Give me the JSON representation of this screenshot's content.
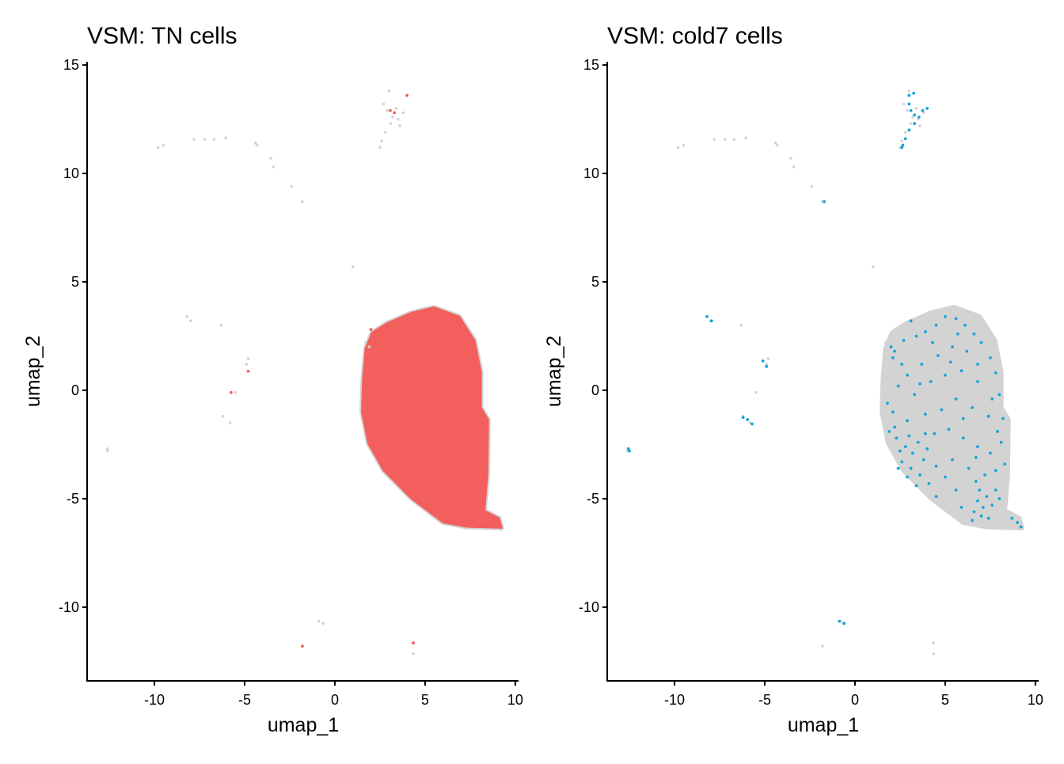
{
  "chart_data": [
    {
      "type": "scatter",
      "title": "VSM: TN cells",
      "xlabel": "umap_1",
      "ylabel": "umap_2",
      "xlim": [
        -13.73,
        10.18
      ],
      "ylim": [
        -13.4,
        15.15
      ],
      "xticks": [
        -10,
        -5,
        0,
        5,
        10
      ],
      "yticks": [
        -10,
        -5,
        0,
        5,
        10,
        15
      ],
      "grid": false,
      "highlight_color": "#F25F5C",
      "background_color": "#D3D3D3",
      "highlight_fills_main_cluster": true
    },
    {
      "type": "scatter",
      "title": "VSM: cold7 cells",
      "xlabel": "umap_1",
      "ylabel": "umap_2",
      "xlim": [
        -13.73,
        10.18
      ],
      "ylim": [
        -13.4,
        15.15
      ],
      "xticks": [
        -10,
        -5,
        0,
        5,
        10
      ],
      "yticks": [
        -10,
        -5,
        0,
        5,
        10,
        15
      ],
      "grid": false,
      "highlight_color": "#17A5DC",
      "background_color": "#D3D3D3",
      "highlight_fills_main_cluster": false
    }
  ],
  "shared": {
    "main_cluster_outline": [
      [
        2.06,
        2.66
      ],
      [
        2.9,
        3.1
      ],
      [
        4.25,
        3.58
      ],
      [
        5.5,
        3.83
      ],
      [
        6.9,
        3.4
      ],
      [
        7.75,
        2.3
      ],
      [
        8.1,
        0.84
      ],
      [
        8.1,
        -0.8
      ],
      [
        8.5,
        -1.35
      ],
      [
        8.46,
        -3.9
      ],
      [
        8.3,
        -5.55
      ],
      [
        9.1,
        -5.9
      ],
      [
        9.25,
        -6.35
      ],
      [
        7.3,
        -6.3
      ],
      [
        6.0,
        -6.1
      ],
      [
        4.25,
        -5.0
      ],
      [
        2.7,
        -3.7
      ],
      [
        1.85,
        -2.45
      ],
      [
        1.5,
        -1.0
      ],
      [
        1.55,
        0.47
      ],
      [
        1.7,
        1.93
      ]
    ],
    "background_points": [
      [
        3.0,
        13.8
      ],
      [
        2.7,
        13.2
      ],
      [
        2.9,
        12.9
      ],
      [
        3.2,
        12.6
      ],
      [
        3.5,
        12.5
      ],
      [
        3.8,
        12.8
      ],
      [
        3.4,
        13.0
      ],
      [
        3.1,
        12.3
      ],
      [
        2.8,
        11.9
      ],
      [
        2.6,
        11.5
      ],
      [
        2.5,
        11.2
      ],
      [
        3.6,
        12.2
      ],
      [
        -9.8,
        11.2
      ],
      [
        -9.5,
        11.3
      ],
      [
        -7.8,
        11.57
      ],
      [
        -7.2,
        11.57
      ],
      [
        -6.7,
        11.57
      ],
      [
        -6.05,
        11.64
      ],
      [
        -4.4,
        11.4
      ],
      [
        -4.3,
        11.3
      ],
      [
        -3.55,
        10.7
      ],
      [
        -3.4,
        10.3
      ],
      [
        -2.4,
        9.4
      ],
      [
        -1.8,
        8.7
      ],
      [
        1.0,
        5.7
      ],
      [
        -8.2,
        3.4
      ],
      [
        -8.0,
        3.2
      ],
      [
        -6.3,
        3.0
      ],
      [
        -4.8,
        1.46
      ],
      [
        -4.9,
        1.2
      ],
      [
        -5.5,
        -0.1
      ],
      [
        -6.2,
        -1.2
      ],
      [
        -5.8,
        -1.5
      ],
      [
        -12.6,
        -2.7
      ],
      [
        -12.6,
        -2.8
      ],
      [
        -0.9,
        -10.65
      ],
      [
        -0.66,
        -10.75
      ],
      [
        -1.8,
        -11.8
      ],
      [
        4.35,
        -11.65
      ],
      [
        4.35,
        -12.15
      ],
      [
        1.7,
        2.2
      ],
      [
        1.9,
        2.0
      ]
    ],
    "tn_points": [
      [
        4.0,
        13.6
      ],
      [
        3.07,
        12.9
      ],
      [
        3.3,
        12.8
      ],
      [
        -4.8,
        0.88
      ],
      [
        -5.75,
        -0.1
      ],
      [
        -1.8,
        -11.8
      ],
      [
        4.35,
        -11.65
      ],
      [
        2.0,
        2.8
      ]
    ],
    "cold7_points": [
      [
        3.0,
        13.6
      ],
      [
        3.25,
        13.7
      ],
      [
        3.0,
        13.2
      ],
      [
        3.1,
        12.9
      ],
      [
        3.3,
        12.7
      ],
      [
        3.55,
        12.6
      ],
      [
        3.75,
        12.9
      ],
      [
        4.0,
        13.0
      ],
      [
        3.3,
        12.3
      ],
      [
        3.0,
        12.0
      ],
      [
        2.8,
        11.6
      ],
      [
        2.65,
        11.3
      ],
      [
        2.6,
        11.2
      ],
      [
        -1.7,
        8.7
      ],
      [
        -8.2,
        3.4
      ],
      [
        -7.95,
        3.2
      ],
      [
        -5.1,
        1.35
      ],
      [
        -4.9,
        1.1
      ],
      [
        -6.2,
        -1.25
      ],
      [
        -5.95,
        -1.35
      ],
      [
        -5.7,
        -1.55
      ],
      [
        -12.55,
        -2.7
      ],
      [
        -12.5,
        -2.8
      ],
      [
        -0.85,
        -10.65
      ],
      [
        -0.6,
        -10.75
      ],
      [
        2.0,
        2.0
      ],
      [
        2.2,
        1.8
      ],
      [
        2.1,
        1.5
      ],
      [
        2.6,
        1.2
      ],
      [
        3.1,
        3.2
      ],
      [
        3.4,
        2.5
      ],
      [
        3.9,
        2.7
      ],
      [
        4.5,
        3.0
      ],
      [
        5.0,
        3.4
      ],
      [
        5.6,
        3.3
      ],
      [
        6.1,
        3.0
      ],
      [
        6.6,
        2.6
      ],
      [
        7.0,
        2.2
      ],
      [
        7.5,
        1.5
      ],
      [
        7.8,
        0.8
      ],
      [
        6.2,
        1.8
      ],
      [
        5.4,
        2.0
      ],
      [
        4.6,
        1.6
      ],
      [
        3.7,
        1.2
      ],
      [
        2.9,
        0.7
      ],
      [
        2.4,
        0.2
      ],
      [
        3.3,
        -0.2
      ],
      [
        4.2,
        0.4
      ],
      [
        5.0,
        0.7
      ],
      [
        5.9,
        0.9
      ],
      [
        6.8,
        0.4
      ],
      [
        7.6,
        -0.4
      ],
      [
        8.2,
        -1.3
      ],
      [
        7.4,
        -1.2
      ],
      [
        6.5,
        -0.8
      ],
      [
        5.6,
        -0.4
      ],
      [
        4.8,
        -0.9
      ],
      [
        3.9,
        -1.1
      ],
      [
        2.9,
        -1.4
      ],
      [
        2.1,
        -1.0
      ],
      [
        1.8,
        -0.6
      ],
      [
        2.3,
        -2.2
      ],
      [
        2.8,
        -2.6
      ],
      [
        3.2,
        -2.9
      ],
      [
        3.5,
        -2.4
      ],
      [
        3.8,
        -3.2
      ],
      [
        2.6,
        -3.3
      ],
      [
        3.1,
        -3.6
      ],
      [
        3.6,
        -3.9
      ],
      [
        4.1,
        -4.3
      ],
      [
        4.5,
        -4.9
      ],
      [
        3.4,
        -4.4
      ],
      [
        2.9,
        -4.0
      ],
      [
        4.0,
        -2.7
      ],
      [
        4.4,
        -2.0
      ],
      [
        5.2,
        -1.8
      ],
      [
        6.0,
        -2.2
      ],
      [
        6.8,
        -2.6
      ],
      [
        7.5,
        -2.9
      ],
      [
        8.1,
        -2.4
      ],
      [
        8.3,
        -3.4
      ],
      [
        7.8,
        -3.7
      ],
      [
        7.2,
        -3.9
      ],
      [
        6.7,
        -4.2
      ],
      [
        6.3,
        -3.6
      ],
      [
        5.4,
        -3.2
      ],
      [
        5.0,
        -4.0
      ],
      [
        5.6,
        -4.6
      ],
      [
        6.9,
        -4.6
      ],
      [
        7.3,
        -4.9
      ],
      [
        6.8,
        -5.1
      ],
      [
        7.1,
        -5.4
      ],
      [
        7.6,
        -5.3
      ],
      [
        6.6,
        -5.6
      ],
      [
        7.0,
        -5.8
      ],
      [
        7.4,
        -5.9
      ],
      [
        6.5,
        -6.0
      ],
      [
        7.8,
        -4.6
      ],
      [
        8.0,
        -5.0
      ],
      [
        8.7,
        -5.9
      ],
      [
        9.0,
        -6.1
      ],
      [
        9.2,
        -6.3
      ],
      [
        5.9,
        -5.4
      ],
      [
        2.2,
        -1.7
      ],
      [
        1.9,
        -1.9
      ],
      [
        2.5,
        -2.8
      ],
      [
        3.0,
        -2.1
      ],
      [
        3.9,
        -2.0
      ],
      [
        5.3,
        1.3
      ],
      [
        6.8,
        1.2
      ],
      [
        6.0,
        -1.3
      ],
      [
        4.5,
        -3.5
      ],
      [
        2.4,
        -3.6
      ],
      [
        5.7,
        2.6
      ],
      [
        6.7,
        -3.1
      ],
      [
        7.9,
        -1.9
      ],
      [
        8.0,
        -0.2
      ],
      [
        3.6,
        0.3
      ],
      [
        4.3,
        2.2
      ],
      [
        2.7,
        2.3
      ]
    ]
  }
}
